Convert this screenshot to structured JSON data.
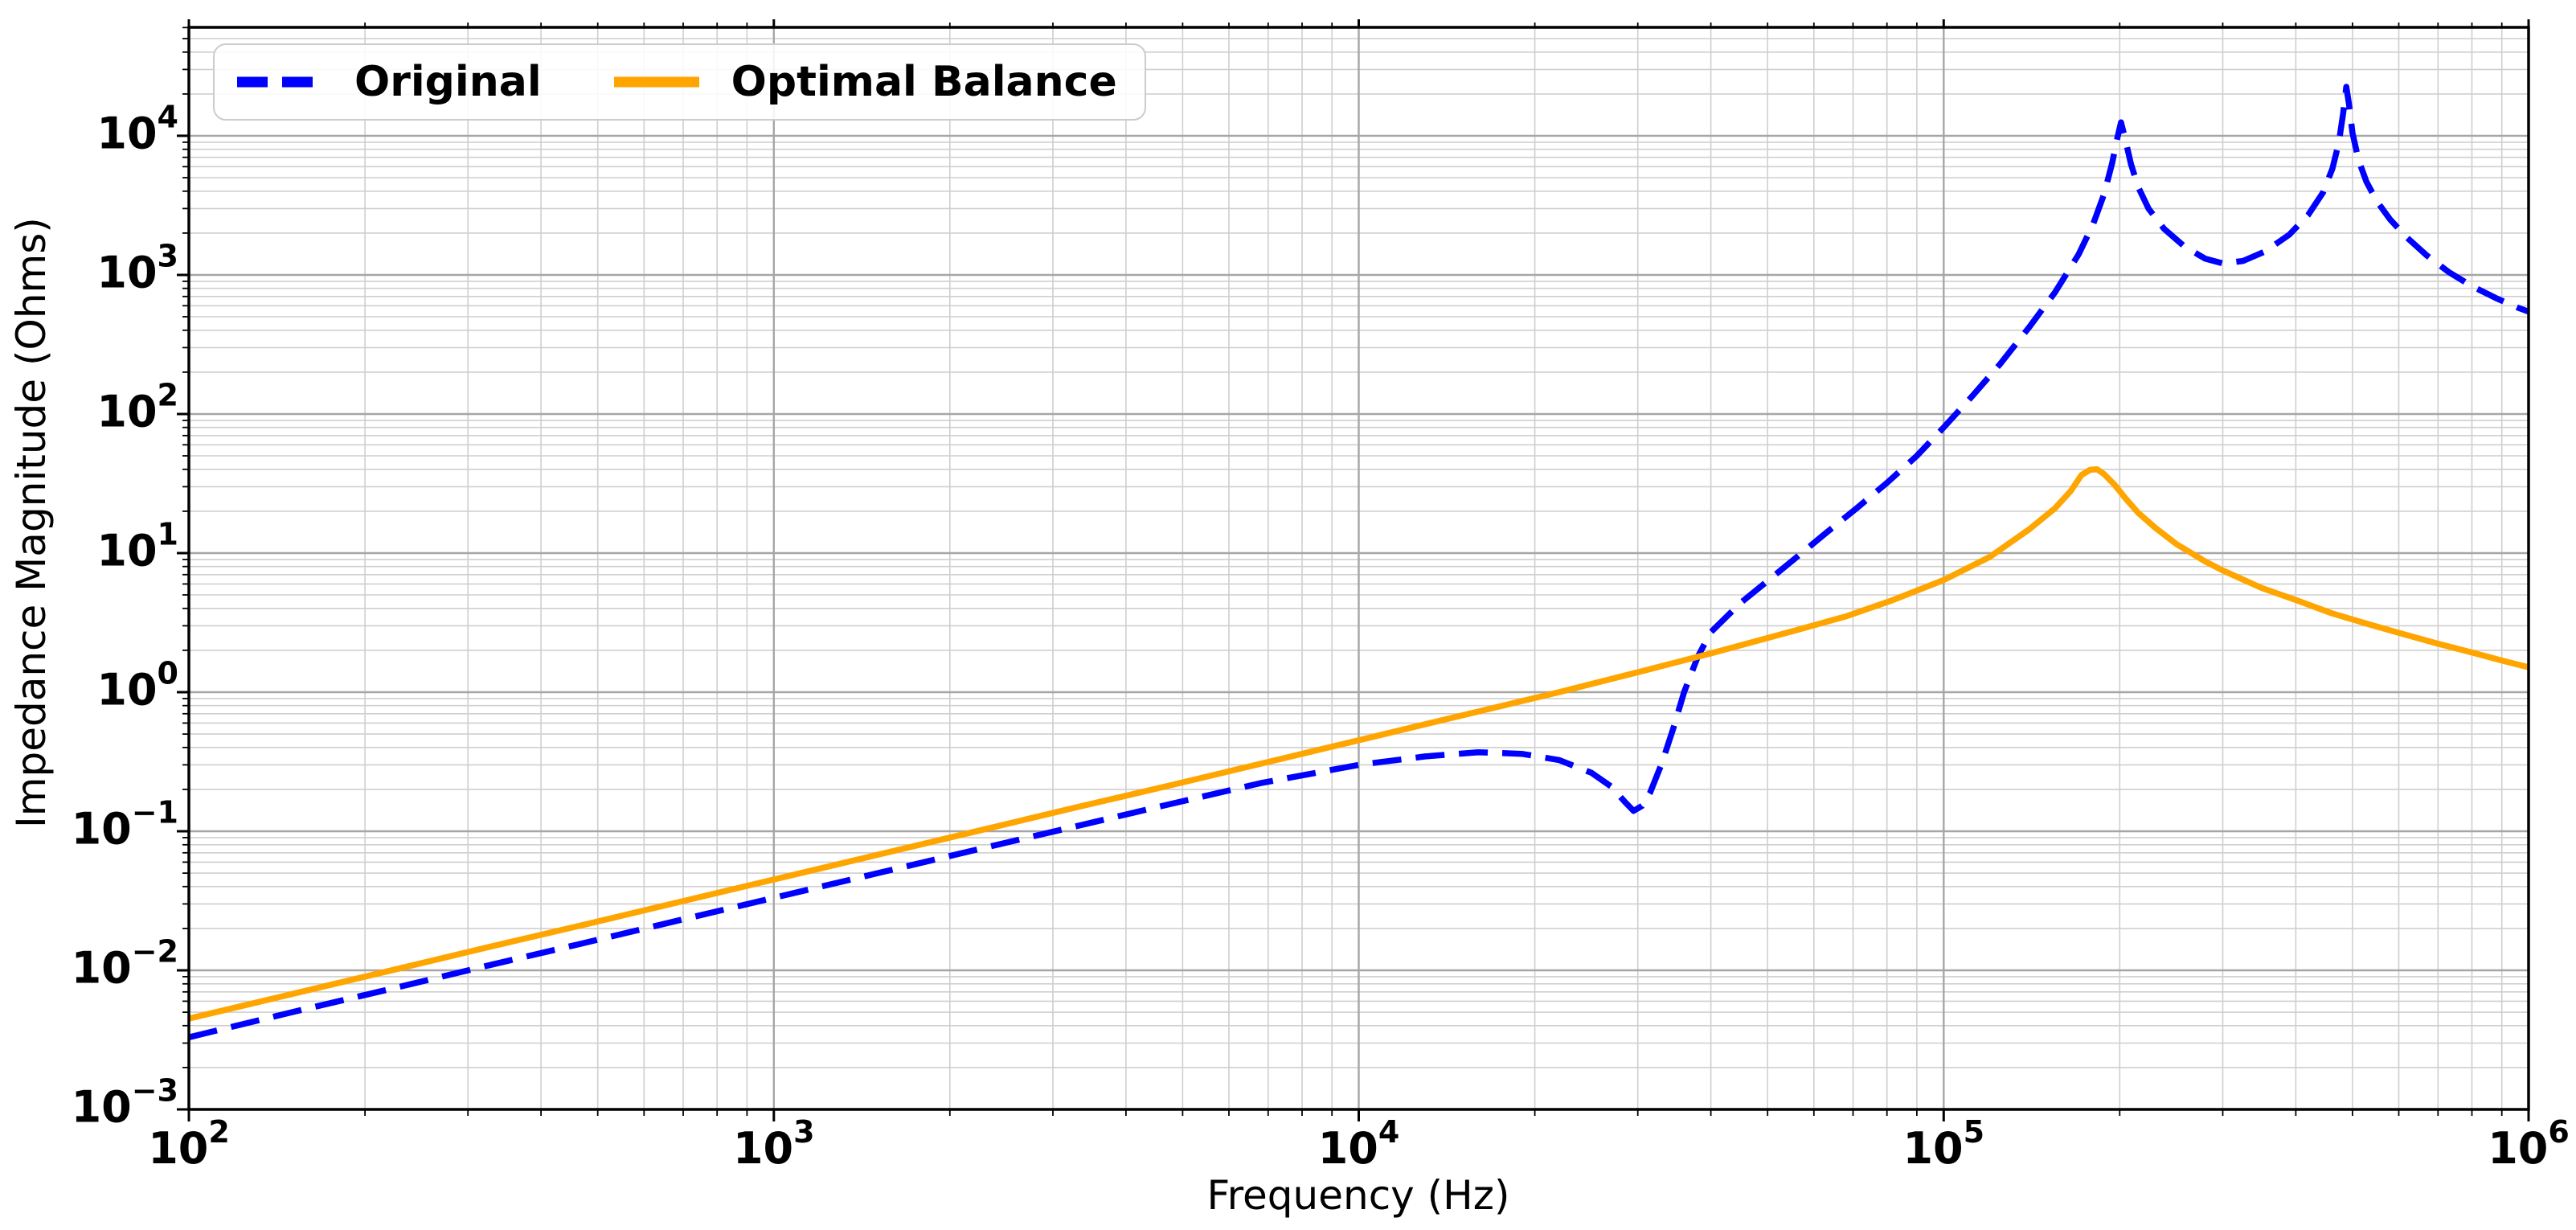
{
  "chart_data": {
    "type": "line",
    "title": "",
    "xlabel": "Frequency (Hz)",
    "ylabel": "Impedance Magnitude (Ohms)",
    "x_scale": "log",
    "y_scale": "log",
    "xlim": [
      100,
      1000000
    ],
    "ylim": [
      0.001,
      60000
    ],
    "x_tick_exponents": [
      2,
      3,
      4,
      5,
      6
    ],
    "y_tick_exponents": [
      -3,
      -2,
      -1,
      0,
      1,
      2,
      3,
      4
    ],
    "grid": {
      "major": true,
      "minor": true
    },
    "legend_position": "upper left",
    "colors": {
      "frame": "#000000",
      "grid_major": "#a6a6a6",
      "grid_minor": "#cfcfcf",
      "legend_border": "#cccccc",
      "background": "#ffffff"
    },
    "series": [
      {
        "name": "Original",
        "color": "#0000ff",
        "style": "dashed",
        "points": [
          [
            100,
            0.0033
          ],
          [
            150,
            0.005
          ],
          [
            220,
            0.0073
          ],
          [
            330,
            0.011
          ],
          [
            470,
            0.0156
          ],
          [
            680,
            0.0226
          ],
          [
            1000,
            0.0332
          ],
          [
            1500,
            0.0498
          ],
          [
            2200,
            0.073
          ],
          [
            3300,
            0.109
          ],
          [
            4700,
            0.155
          ],
          [
            6800,
            0.222
          ],
          [
            10000,
            0.3
          ],
          [
            13000,
            0.345
          ],
          [
            16000,
            0.37
          ],
          [
            19000,
            0.36
          ],
          [
            22000,
            0.325
          ],
          [
            25000,
            0.263
          ],
          [
            27000,
            0.21
          ],
          [
            28500,
            0.163
          ],
          [
            29500,
            0.14
          ],
          [
            30500,
            0.152
          ],
          [
            31500,
            0.19
          ],
          [
            33000,
            0.31
          ],
          [
            34500,
            0.55
          ],
          [
            36000,
            1.0
          ],
          [
            38000,
            1.8
          ],
          [
            40000,
            2.7
          ],
          [
            45000,
            4.4
          ],
          [
            50000,
            6.3
          ],
          [
            56000,
            9.3
          ],
          [
            63000,
            14
          ],
          [
            71000,
            21
          ],
          [
            80000,
            32
          ],
          [
            90000,
            50
          ],
          [
            100000,
            80
          ],
          [
            112000,
            135
          ],
          [
            125000,
            230
          ],
          [
            140000,
            420
          ],
          [
            155000,
            750
          ],
          [
            170000,
            1400
          ],
          [
            180000,
            2300
          ],
          [
            188000,
            3800
          ],
          [
            194000,
            6300
          ],
          [
            198000,
            9500
          ],
          [
            201000,
            12500
          ],
          [
            204000,
            9800
          ],
          [
            209000,
            6300
          ],
          [
            215000,
            4300
          ],
          [
            224000,
            3000
          ],
          [
            238000,
            2150
          ],
          [
            258000,
            1600
          ],
          [
            280000,
            1310
          ],
          [
            300000,
            1210
          ],
          [
            325000,
            1260
          ],
          [
            355000,
            1480
          ],
          [
            390000,
            1950
          ],
          [
            420000,
            2700
          ],
          [
            445000,
            3900
          ],
          [
            462000,
            5800
          ],
          [
            474000,
            9000
          ],
          [
            482000,
            14500
          ],
          [
            488000,
            22500
          ],
          [
            493000,
            17000
          ],
          [
            500000,
            10500
          ],
          [
            512000,
            6700
          ],
          [
            528000,
            4700
          ],
          [
            550000,
            3400
          ],
          [
            580000,
            2500
          ],
          [
            620000,
            1850
          ],
          [
            670000,
            1380
          ],
          [
            730000,
            1050
          ],
          [
            800000,
            830
          ],
          [
            880000,
            680
          ],
          [
            960000,
            580
          ],
          [
            1000000,
            545
          ]
        ]
      },
      {
        "name": "Optimal Balance",
        "color": "#ffa500",
        "style": "solid",
        "points": [
          [
            100,
            0.0045
          ],
          [
            150,
            0.00675
          ],
          [
            220,
            0.0099
          ],
          [
            330,
            0.0149
          ],
          [
            470,
            0.0211
          ],
          [
            680,
            0.0306
          ],
          [
            1000,
            0.045
          ],
          [
            1500,
            0.0675
          ],
          [
            2200,
            0.099
          ],
          [
            3300,
            0.149
          ],
          [
            4700,
            0.211
          ],
          [
            6800,
            0.306
          ],
          [
            10000,
            0.451
          ],
          [
            15000,
            0.68
          ],
          [
            22000,
            1.0
          ],
          [
            30000,
            1.39
          ],
          [
            40000,
            1.9
          ],
          [
            56000,
            2.79
          ],
          [
            68000,
            3.5
          ],
          [
            82000,
            4.6
          ],
          [
            100000,
            6.4
          ],
          [
            120000,
            9.4
          ],
          [
            140000,
            14.8
          ],
          [
            155000,
            21
          ],
          [
            165000,
            28
          ],
          [
            172000,
            36.4
          ],
          [
            178000,
            39.7
          ],
          [
            183000,
            40
          ],
          [
            188000,
            37
          ],
          [
            196000,
            31
          ],
          [
            205000,
            24.5
          ],
          [
            215000,
            19.5
          ],
          [
            230000,
            15.2
          ],
          [
            250000,
            11.6
          ],
          [
            280000,
            8.7
          ],
          [
            300000,
            7.5
          ],
          [
            350000,
            5.6
          ],
          [
            400000,
            4.6
          ],
          [
            460000,
            3.7
          ],
          [
            530000,
            3.1
          ],
          [
            600000,
            2.67
          ],
          [
            700000,
            2.23
          ],
          [
            800000,
            1.93
          ],
          [
            900000,
            1.69
          ],
          [
            1000000,
            1.51
          ]
        ]
      }
    ]
  }
}
